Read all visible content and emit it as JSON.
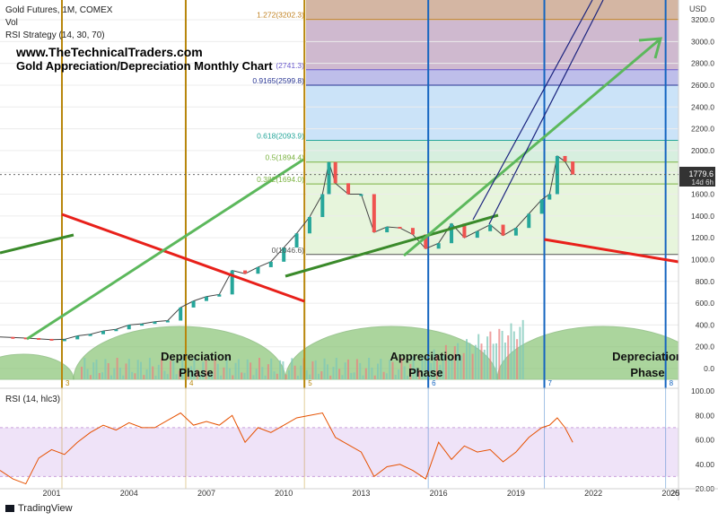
{
  "header": {
    "line1": "Gold Futures, 1M, COMEX",
    "line2": "Vol",
    "line3": "RSI Strategy (14, 30, 70)",
    "site": "www.TheTechnicalTraders.com",
    "headline": "Gold Appreciation/Depreciation Monthly Chart"
  },
  "footer": {
    "brand": "TradingView",
    "currency": "USD"
  },
  "price_tag": {
    "value": "1779.6",
    "countdown": "14d 6h"
  },
  "rsi_panel": {
    "label": "RSI (14, hlc3)"
  },
  "colors": {
    "candle_up": "#26a69a",
    "candle_down": "#ef5350",
    "phase_dome": "#7fbf6a",
    "trend_green": "#3a8a2a",
    "arrow_green": "#5cb85c",
    "red_line": "#e8201a",
    "cycle_gold": "#b8860b",
    "cycle_blue": "#1565c0",
    "channel": "#1a237e",
    "rsi_line": "#e65100",
    "rsi_band": "#e8d7f5"
  },
  "chart_data": {
    "type": "line",
    "series": [
      {
        "name": "Gold Futures",
        "x": [
          1999.0,
          1999.5,
          2000.0,
          2000.5,
          2001.0,
          2001.5,
          2002.0,
          2002.5,
          2003.0,
          2003.5,
          2004.0,
          2004.5,
          2005.0,
          2005.5,
          2006.0,
          2006.5,
          2007.0,
          2007.5,
          2008.0,
          2008.5,
          2009.0,
          2009.5,
          2010.0,
          2010.5,
          2011.0,
          2011.5,
          2011.75,
          2012.0,
          2012.5,
          2013.0,
          2013.5,
          2014.0,
          2014.5,
          2015.0,
          2015.5,
          2016.0,
          2016.5,
          2017.0,
          2017.5,
          2018.0,
          2018.5,
          2019.0,
          2019.5,
          2020.0,
          2020.3,
          2020.6,
          2020.9,
          2021.2
        ],
        "values": [
          290,
          285,
          280,
          272,
          265,
          268,
          300,
          315,
          345,
          360,
          400,
          410,
          430,
          440,
          560,
          620,
          660,
          680,
          900,
          870,
          930,
          980,
          1110,
          1240,
          1390,
          1600,
          1894,
          1700,
          1600,
          1600,
          1250,
          1300,
          1290,
          1230,
          1100,
          1150,
          1330,
          1200,
          1260,
          1320,
          1220,
          1290,
          1420,
          1550,
          1600,
          1950,
          1900,
          1780
        ]
      },
      {
        "name": "RSI (14, hlc3)",
        "x": [
          1999.0,
          1999.5,
          2000.0,
          2000.5,
          2001.0,
          2001.5,
          2002.0,
          2002.5,
          2003.0,
          2003.5,
          2004.0,
          2004.5,
          2005.0,
          2005.5,
          2006.0,
          2006.5,
          2007.0,
          2007.5,
          2008.0,
          2008.5,
          2009.0,
          2009.5,
          2010.0,
          2010.5,
          2011.0,
          2011.5,
          2012.0,
          2012.5,
          2013.0,
          2013.5,
          2014.0,
          2014.5,
          2015.0,
          2015.5,
          2016.0,
          2016.5,
          2017.0,
          2017.5,
          2018.0,
          2018.5,
          2019.0,
          2019.5,
          2020.0,
          2020.3,
          2020.6,
          2020.9,
          2021.2
        ],
        "values": [
          35,
          28,
          24,
          45,
          52,
          48,
          58,
          66,
          72,
          68,
          74,
          70,
          70,
          76,
          82,
          72,
          75,
          72,
          80,
          58,
          70,
          66,
          72,
          78,
          80,
          82,
          62,
          56,
          50,
          30,
          38,
          40,
          35,
          28,
          58,
          44,
          55,
          50,
          52,
          42,
          50,
          62,
          70,
          72,
          78,
          70,
          58
        ]
      }
    ],
    "xlim": [
      1999,
      2025.3
    ],
    "ylim": [
      -150,
      3330
    ],
    "rsi_ylim": [
      20,
      100
    ],
    "y_ticks": [
      "3200.0",
      "3000.0",
      "2800.0",
      "2600.0",
      "2400.0",
      "2200.0",
      "2000.0",
      "1800.0",
      "1600.0",
      "1400.0",
      "1200.0",
      "1000.0",
      "800.0",
      "600.0",
      "400.0",
      "200.0",
      "0.0"
    ],
    "rsi_ticks": [
      "100.00",
      "80.00",
      "60.00",
      "40.00",
      "20.00"
    ],
    "x_ticks": [
      "2001",
      "2004",
      "2007",
      "2010",
      "2013",
      "2016",
      "2019",
      "2022",
      "2025",
      "20"
    ],
    "fib_levels": [
      {
        "label": "1.272(3202.3)",
        "value": 3202.3,
        "color": "#c08020"
      },
      {
        "label": "(2741.3)",
        "value": 2741.3,
        "color": "#6a5acd"
      },
      {
        "label": "0.9165(2599.8)",
        "value": 2599.8,
        "color": "#283593"
      },
      {
        "label": "0.618(2093.9)",
        "value": 2093.9,
        "color": "#26a69a"
      },
      {
        "label": "0.5(1894.4)",
        "value": 1894.4,
        "color": "#7cb342"
      },
      {
        "label": "0.382(1694.0)",
        "value": 1694.0,
        "color": "#7cb342"
      },
      {
        "label": "0(1046.6)",
        "value": 1046.6,
        "color": "#555555"
      }
    ],
    "cycle_lines": [
      {
        "label": "3",
        "year": 2001.4,
        "color": "#b8860b"
      },
      {
        "label": "4",
        "year": 2006.2,
        "color": "#b8860b"
      },
      {
        "label": "5",
        "year": 2010.8,
        "color": "#b8860b"
      },
      {
        "label": "6",
        "year": 2015.6,
        "color": "#1565c0"
      },
      {
        "label": "7",
        "year": 2020.1,
        "color": "#1565c0"
      },
      {
        "label": "8",
        "year": 2024.8,
        "color": "#1565c0"
      }
    ],
    "phases": [
      {
        "label": "Depreciation",
        "label2": "Phase",
        "x": 2006.6,
        "y": -3
      },
      {
        "label": "Appreciation",
        "label2": "Phase",
        "x": 2015.5,
        "y": -7
      },
      {
        "label": "Depreciation",
        "label2": "Phase",
        "x": 2024.1,
        "y": -3
      }
    ],
    "legend": "none",
    "grid": true
  }
}
